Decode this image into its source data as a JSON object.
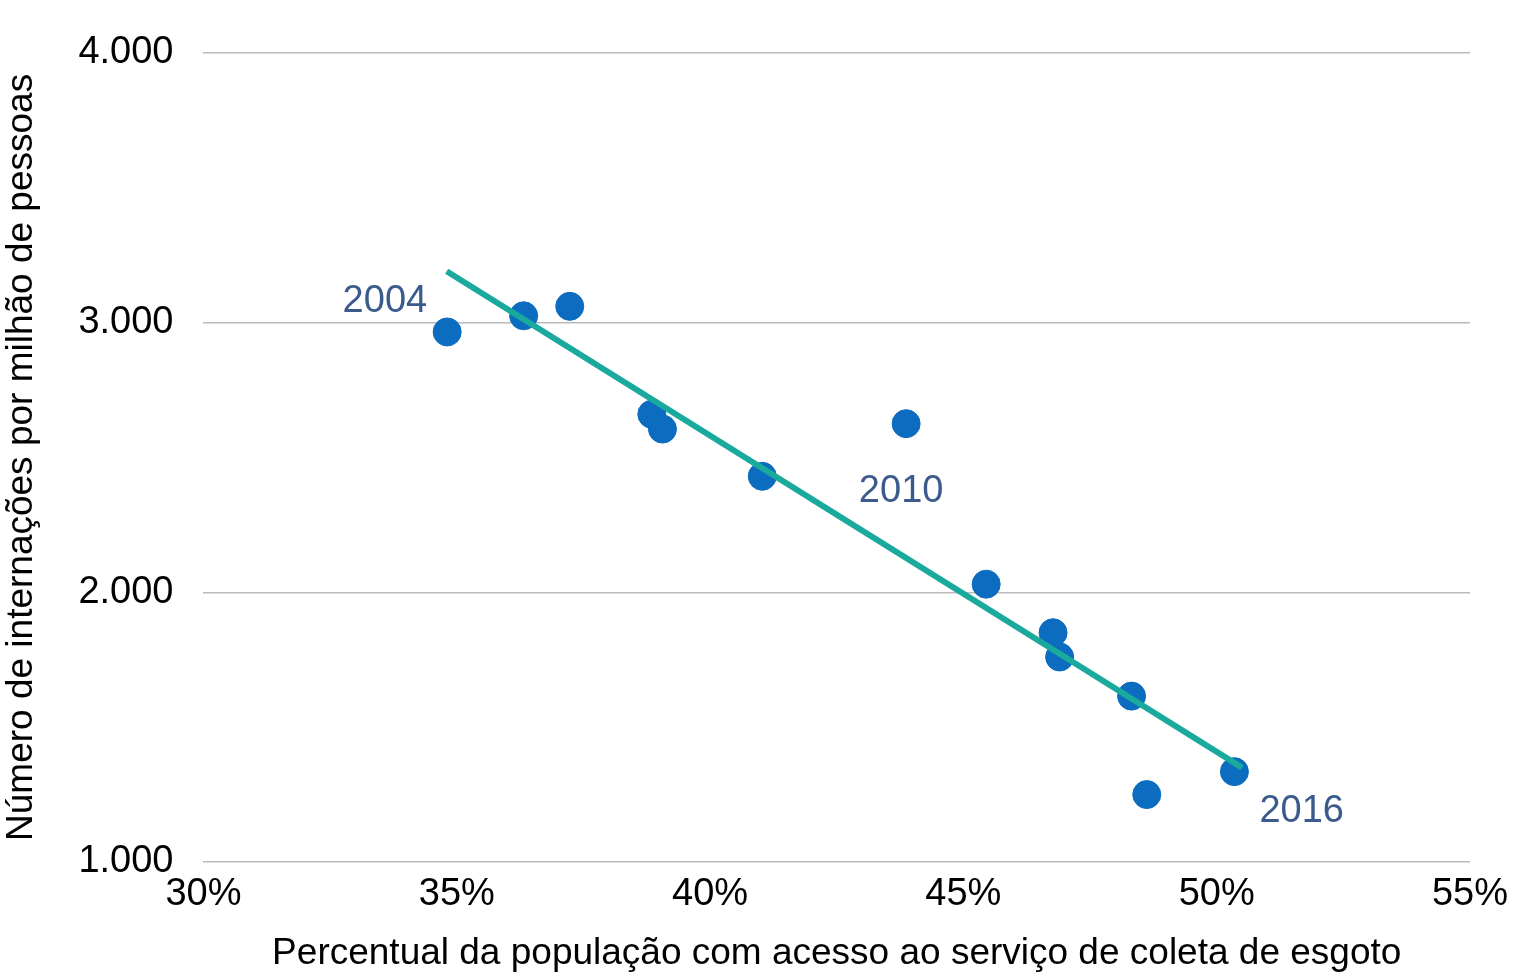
{
  "chart_data": {
    "type": "scatter",
    "xlabel": "Percentual da população com acesso ao serviço de coleta de esgoto",
    "ylabel": "Número de internações por milhão de pessoas",
    "series": [
      {
        "color": "#0b6cc0",
        "marker": "circle",
        "x": [
          34.81,
          36.32,
          37.23,
          38.85,
          39.06,
          41.03,
          43.87,
          45.45,
          46.77,
          46.9,
          48.32,
          48.62,
          50.35
        ],
        "values": [
          2965,
          3025,
          3060,
          2660,
          2605,
          2430,
          2625,
          2030,
          1850,
          1760,
          1615,
          1250,
          1335
        ]
      },
      {
        "type": "line",
        "marker": "none",
        "color": "#19aa9d",
        "x": [
          34.8,
          50.5
        ],
        "values": [
          3190,
          1350
        ]
      }
    ],
    "grid": "y",
    "legend": false,
    "xlim": [
      30,
      55
    ],
    "xticks": [
      {
        "value": 30,
        "label": "30%"
      },
      {
        "value": 35,
        "label": "35%"
      },
      {
        "value": 40,
        "label": "40%"
      },
      {
        "value": 45,
        "label": "45%"
      },
      {
        "value": 50,
        "label": "50%"
      },
      {
        "value": 55,
        "label": "55%"
      }
    ],
    "ylim": [
      1000,
      4000
    ],
    "yticks": [
      {
        "value": 1000,
        "label": "1.000"
      },
      {
        "value": 2000,
        "label": "2.000"
      },
      {
        "value": 3000,
        "label": "3.000"
      },
      {
        "value": 4000,
        "label": "4.000"
      }
    ],
    "annotations": [
      {
        "text": "2004",
        "x": 34.81,
        "y": 2965
      },
      {
        "text": "2010",
        "x": 43.87,
        "y": 2625
      },
      {
        "text": "2016",
        "x": 50.35,
        "y": 1335
      }
    ]
  }
}
